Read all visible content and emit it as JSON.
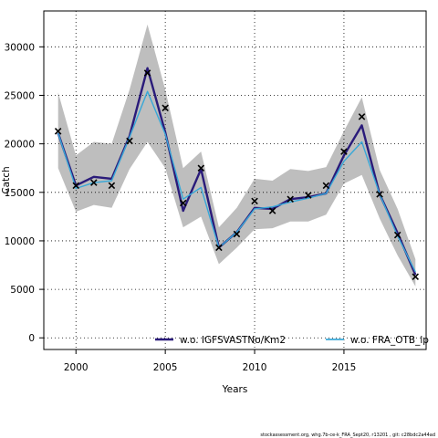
{
  "chart_data": {
    "type": "line",
    "xlabel": "Years",
    "ylabel": "Catch",
    "xlim": [
      1998.2,
      2019.6
    ],
    "ylim": [
      -1200,
      33700
    ],
    "xticks": [
      2000,
      2005,
      2010,
      2015
    ],
    "yticks": [
      0,
      5000,
      10000,
      15000,
      20000,
      25000,
      30000
    ],
    "grid": true,
    "legend_position": "bottom",
    "x": [
      1999,
      2000,
      2001,
      2002,
      2003,
      2004,
      2005,
      2006,
      2007,
      2008,
      2009,
      2010,
      2011,
      2012,
      2013,
      2014,
      2015,
      2016,
      2017,
      2018,
      2019
    ],
    "band": {
      "upper": [
        25300,
        18800,
        20200,
        20000,
        25600,
        32300,
        25600,
        17500,
        19200,
        11400,
        13400,
        16400,
        16200,
        17400,
        17200,
        17600,
        21300,
        24800,
        17300,
        13300,
        8100
      ],
      "lower": [
        17500,
        13000,
        13700,
        13400,
        17400,
        20200,
        17500,
        11400,
        12500,
        7600,
        9300,
        11200,
        11300,
        12000,
        12000,
        12700,
        15900,
        16800,
        12300,
        8500,
        5300
      ]
    },
    "series": [
      {
        "name": "w.o. IGFSVASTNo/Km2",
        "color": "#2a1b7a",
        "values": [
          21100,
          15700,
          16600,
          16400,
          20800,
          27800,
          21200,
          13100,
          17400,
          9300,
          10900,
          13400,
          13300,
          14300,
          14500,
          14900,
          18800,
          21900,
          14800,
          10800,
          6500
        ]
      },
      {
        "name": "w.o. FRA_OTB_lp",
        "color": "#38a8d8",
        "values": [
          21100,
          15400,
          16000,
          16200,
          20700,
          25400,
          21000,
          14300,
          15500,
          9300,
          10900,
          13300,
          13500,
          14000,
          14400,
          14900,
          18200,
          20200,
          14800,
          10500,
          6800
        ]
      }
    ],
    "observed": {
      "marker": "x",
      "values": [
        21300,
        15700,
        16000,
        15700,
        20300,
        27300,
        23700,
        13900,
        17500,
        9300,
        10700,
        14100,
        13100,
        14300,
        14700,
        15700,
        19200,
        22800,
        14800,
        10600,
        6300
      ]
    }
  },
  "footnote": "stockassessment.org, whg.7b-ce-k_FRA_Sept20, r13201 , git: c28bdc2a44ad"
}
